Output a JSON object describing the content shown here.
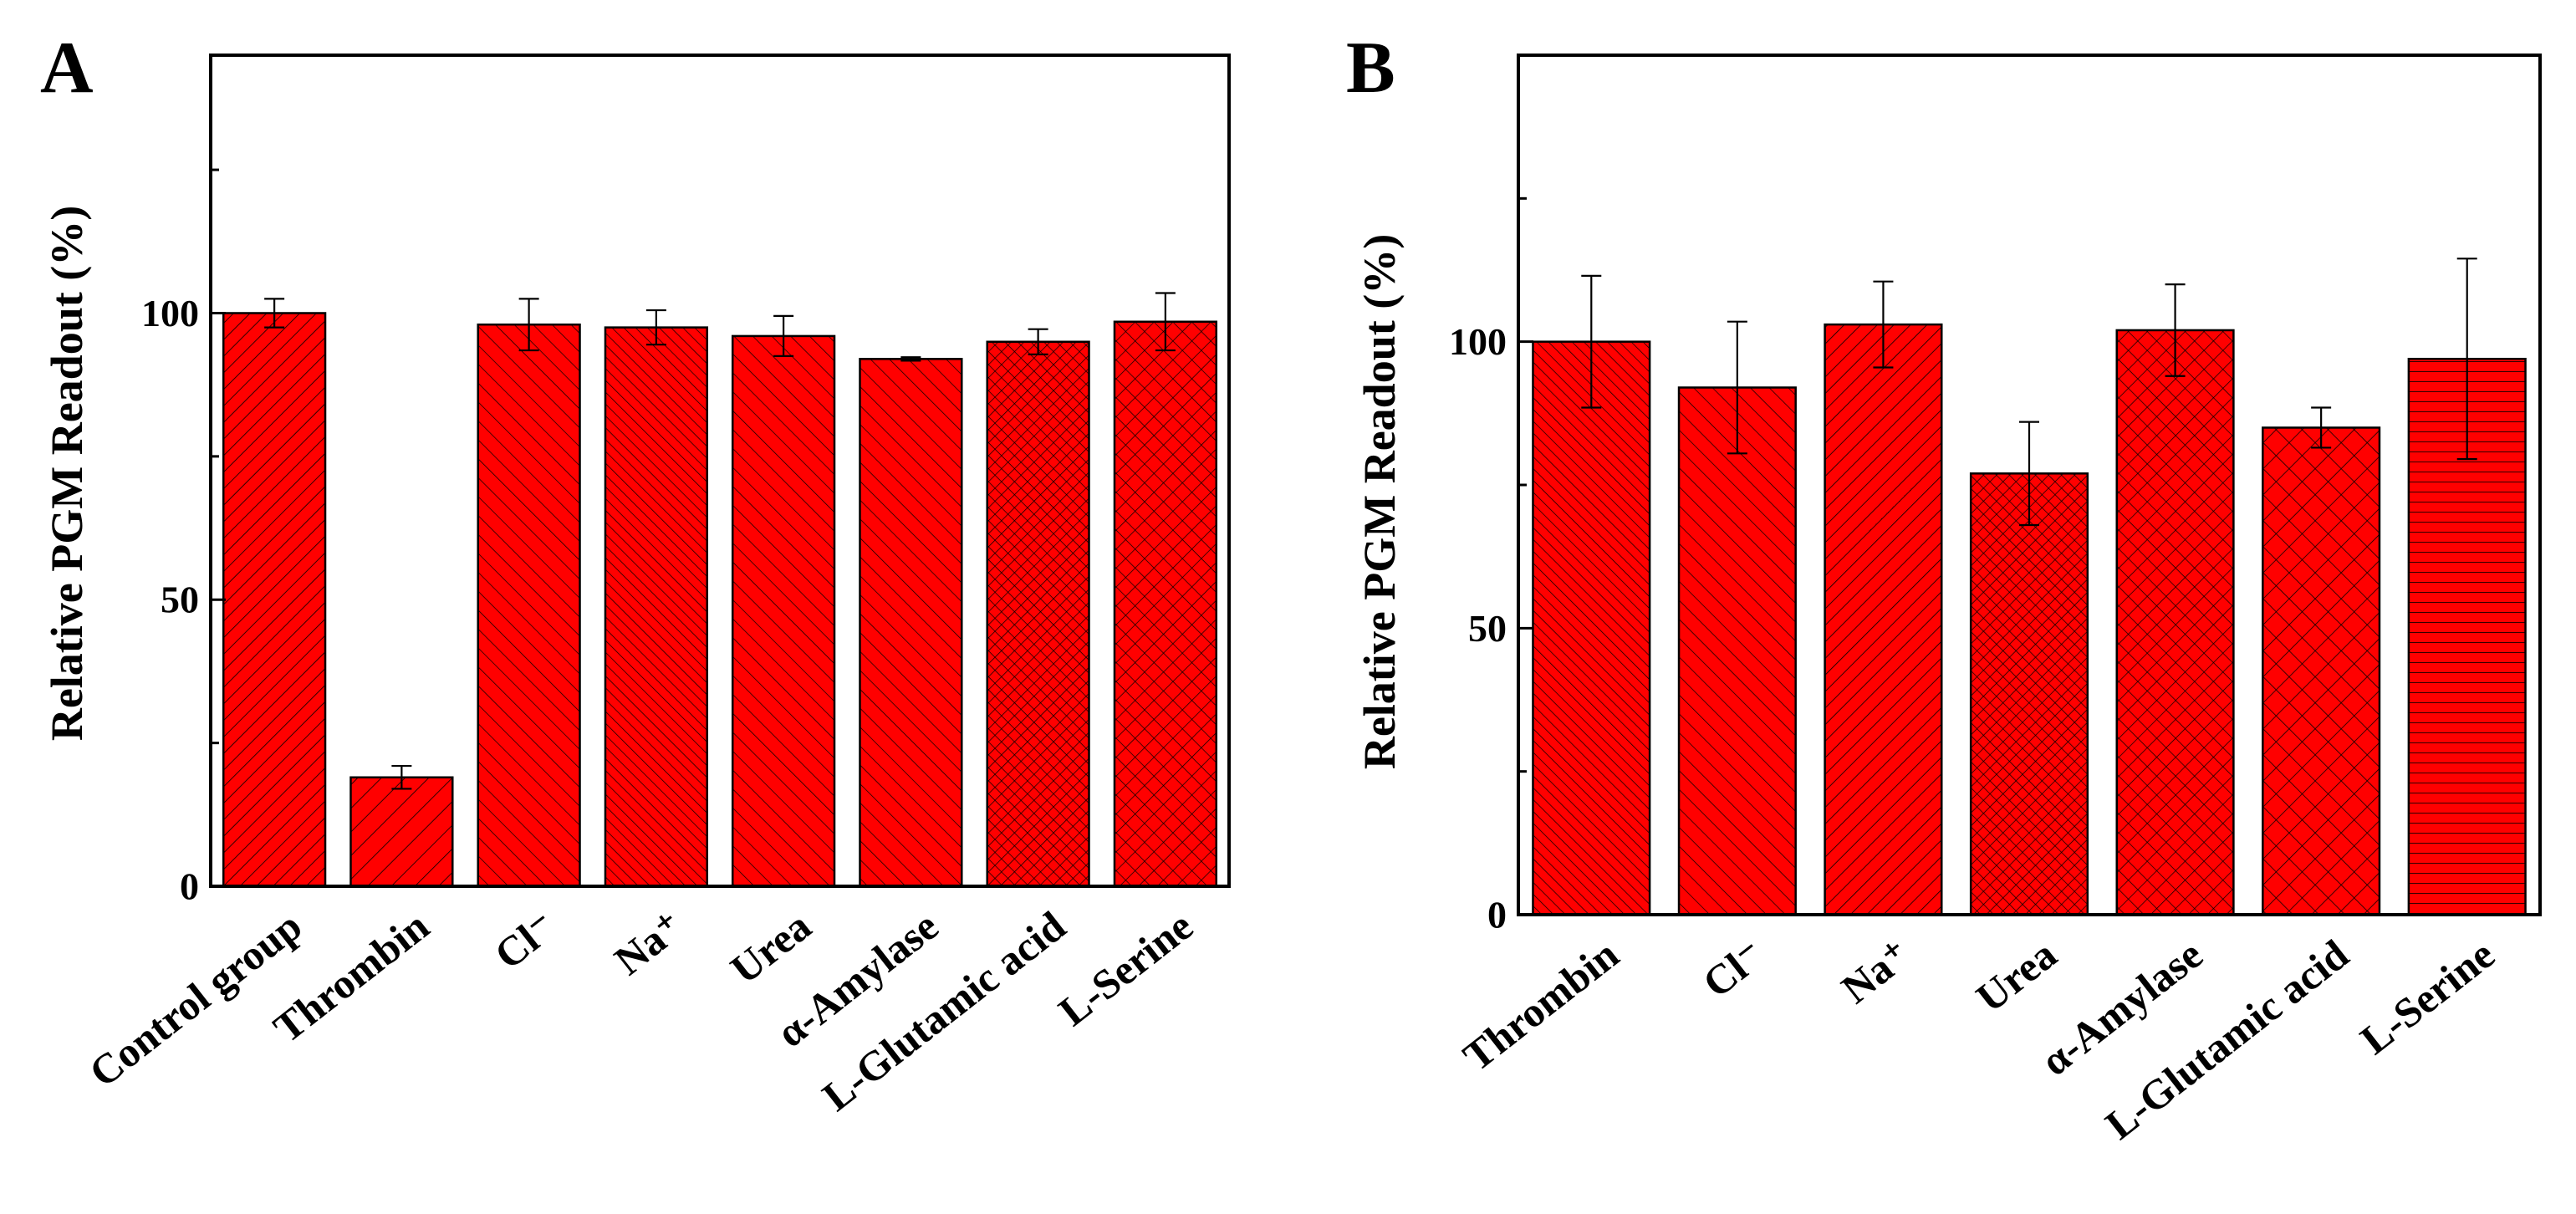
{
  "figure_style": {
    "bar_color": "#ff0000",
    "hatch_color": "#000000",
    "axis_color": "#000000"
  },
  "chart_data": [
    {
      "type": "bar",
      "panel_label": "A",
      "title": "",
      "xlabel": "",
      "ylabel": "Relative PGM Readout (%)",
      "ylim": [
        0,
        145
      ],
      "yticks": [
        0,
        50,
        100
      ],
      "ytick_labels": [
        "0",
        "50",
        "100"
      ],
      "categories": [
        "Control group",
        "Thrombin",
        "Cl⁻",
        "Na⁺",
        "Urea",
        "α-Amylase",
        "L-Glutamic acid",
        "L-Serine"
      ],
      "values": [
        100,
        19,
        98,
        97.5,
        96,
        92,
        95,
        98.5
      ],
      "errors": [
        2.5,
        2,
        4.5,
        3,
        3.5,
        0.3,
        2.2,
        5
      ],
      "hatches": [
        "diag-right",
        "diag-right-sparse",
        "diag-left",
        "diag-left-dense",
        "diag-left",
        "diag-left",
        "cross-dense",
        "cross"
      ]
    },
    {
      "type": "bar",
      "panel_label": "B",
      "title": "",
      "xlabel": "",
      "ylabel": "Relative PGM Readout (%)",
      "ylim": [
        0,
        150
      ],
      "yticks": [
        0,
        50,
        100
      ],
      "ytick_labels": [
        "0",
        "50",
        "100"
      ],
      "categories": [
        "Thrombin",
        "Cl⁻",
        "Na⁺",
        "Urea",
        "α-Amylase",
        "L-Glutamic acid",
        "L-Serine"
      ],
      "values": [
        100,
        92,
        103,
        77,
        102,
        85,
        97
      ],
      "errors": [
        11.5,
        11.5,
        7.5,
        9,
        8,
        3.5,
        17.5
      ],
      "hatches": [
        "diag-left-dense",
        "diag-left",
        "diag-right",
        "cross-dense",
        "cross",
        "cross-sparse",
        "horizontal"
      ]
    }
  ]
}
